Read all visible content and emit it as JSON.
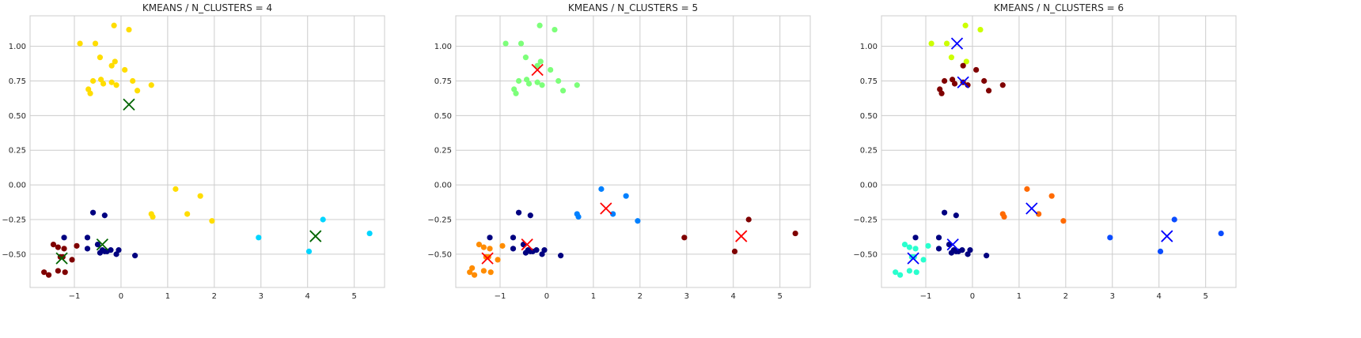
{
  "chart_data": [
    {
      "type": "scatter",
      "title": "KMEANS / N_CLUSTERS = 4",
      "xlim": [
        -1.95,
        5.65
      ],
      "ylim": [
        -0.74,
        1.22
      ],
      "grid": true,
      "xticks": [
        -1,
        0,
        1,
        2,
        3,
        4,
        5
      ],
      "yticks": [
        -0.5,
        -0.25,
        0.0,
        0.25,
        0.5,
        0.75,
        1.0
      ],
      "xtick_labels": [
        "−1",
        "0",
        "1",
        "2",
        "3",
        "4",
        "5"
      ],
      "ytick_labels": [
        "−0.50",
        "−0.25",
        "0.00",
        "0.25",
        "0.50",
        "0.75",
        "1.00"
      ],
      "clusters": [
        {
          "color": "#ffdd00",
          "points": [
            [
              -0.88,
              1.02
            ],
            [
              -0.55,
              1.02
            ],
            [
              -0.15,
              1.15
            ],
            [
              0.17,
              1.12
            ],
            [
              -0.45,
              0.92
            ],
            [
              -0.13,
              0.89
            ],
            [
              -0.2,
              0.86
            ],
            [
              0.08,
              0.83
            ],
            [
              -0.6,
              0.75
            ],
            [
              -0.43,
              0.76
            ],
            [
              -0.2,
              0.74
            ],
            [
              -0.38,
              0.73
            ],
            [
              -0.1,
              0.72
            ],
            [
              0.25,
              0.75
            ],
            [
              0.65,
              0.72
            ],
            [
              -0.7,
              0.69
            ],
            [
              -0.66,
              0.66
            ],
            [
              0.35,
              0.68
            ],
            [
              1.17,
              -0.03
            ],
            [
              1.7,
              -0.08
            ],
            [
              0.65,
              -0.21
            ],
            [
              0.68,
              -0.23
            ],
            [
              1.42,
              -0.21
            ],
            [
              1.95,
              -0.26
            ]
          ]
        },
        {
          "color": "#000080",
          "points": [
            [
              -0.6,
              -0.2
            ],
            [
              -0.35,
              -0.22
            ],
            [
              -1.22,
              -0.38
            ],
            [
              -0.72,
              -0.38
            ],
            [
              -0.5,
              -0.43
            ],
            [
              -0.72,
              -0.46
            ],
            [
              -0.4,
              -0.47
            ],
            [
              -0.45,
              -0.49
            ],
            [
              -0.35,
              -0.48
            ],
            [
              -0.22,
              -0.47
            ],
            [
              -0.1,
              -0.5
            ],
            [
              -0.05,
              -0.47
            ],
            [
              0.3,
              -0.51
            ],
            [
              -0.3,
              -0.48
            ]
          ]
        },
        {
          "color": "#7f0000",
          "points": [
            [
              -1.45,
              -0.43
            ],
            [
              -1.35,
              -0.45
            ],
            [
              -1.22,
              -0.46
            ],
            [
              -0.95,
              -0.44
            ],
            [
              -1.3,
              -0.52
            ],
            [
              -1.05,
              -0.54
            ],
            [
              -1.25,
              -0.52
            ],
            [
              -1.65,
              -0.63
            ],
            [
              -1.55,
              -0.65
            ],
            [
              -1.35,
              -0.62
            ],
            [
              -1.2,
              -0.63
            ]
          ]
        },
        {
          "color": "#00d5ff",
          "points": [
            [
              2.95,
              -0.38
            ],
            [
              4.33,
              -0.25
            ],
            [
              5.33,
              -0.35
            ],
            [
              4.03,
              -0.48
            ]
          ]
        }
      ],
      "centroids": {
        "color": "#006400",
        "points": [
          [
            0.17,
            0.58
          ],
          [
            -0.4,
            -0.43
          ],
          [
            -1.27,
            -0.53
          ],
          [
            4.17,
            -0.37
          ]
        ]
      }
    },
    {
      "type": "scatter",
      "title": "KMEANS / N_CLUSTERS = 5",
      "xlim": [
        -1.95,
        5.65
      ],
      "ylim": [
        -0.74,
        1.22
      ],
      "grid": true,
      "xticks": [
        -1,
        0,
        1,
        2,
        3,
        4,
        5
      ],
      "yticks": [
        -0.5,
        -0.25,
        0.0,
        0.25,
        0.5,
        0.75,
        1.0
      ],
      "xtick_labels": [
        "−1",
        "0",
        "1",
        "2",
        "3",
        "4",
        "5"
      ],
      "ytick_labels": [
        "−0.50",
        "−0.25",
        "0.00",
        "0.25",
        "0.50",
        "0.75",
        "1.00"
      ],
      "clusters": [
        {
          "color": "#7dff7a",
          "points": [
            [
              -0.88,
              1.02
            ],
            [
              -0.55,
              1.02
            ],
            [
              -0.15,
              1.15
            ],
            [
              0.17,
              1.12
            ],
            [
              -0.45,
              0.92
            ],
            [
              -0.13,
              0.89
            ],
            [
              -0.2,
              0.86
            ],
            [
              0.08,
              0.83
            ],
            [
              -0.6,
              0.75
            ],
            [
              -0.43,
              0.76
            ],
            [
              -0.2,
              0.74
            ],
            [
              -0.38,
              0.73
            ],
            [
              -0.1,
              0.72
            ],
            [
              0.25,
              0.75
            ],
            [
              0.65,
              0.72
            ],
            [
              -0.7,
              0.69
            ],
            [
              -0.66,
              0.66
            ],
            [
              0.35,
              0.68
            ]
          ]
        },
        {
          "color": "#000080",
          "points": [
            [
              -0.6,
              -0.2
            ],
            [
              -0.35,
              -0.22
            ],
            [
              -1.22,
              -0.38
            ],
            [
              -0.72,
              -0.38
            ],
            [
              -0.5,
              -0.43
            ],
            [
              -0.72,
              -0.46
            ],
            [
              -0.4,
              -0.47
            ],
            [
              -0.45,
              -0.49
            ],
            [
              -0.35,
              -0.48
            ],
            [
              -0.22,
              -0.47
            ],
            [
              -0.1,
              -0.5
            ],
            [
              -0.05,
              -0.47
            ],
            [
              0.3,
              -0.51
            ],
            [
              -0.3,
              -0.48
            ]
          ]
        },
        {
          "color": "#ff8c00",
          "points": [
            [
              -1.45,
              -0.43
            ],
            [
              -1.35,
              -0.45
            ],
            [
              -1.22,
              -0.46
            ],
            [
              -0.95,
              -0.44
            ],
            [
              -1.3,
              -0.52
            ],
            [
              -1.05,
              -0.54
            ],
            [
              -1.25,
              -0.52
            ],
            [
              -1.65,
              -0.63
            ],
            [
              -1.55,
              -0.65
            ],
            [
              -1.35,
              -0.62
            ],
            [
              -1.2,
              -0.63
            ],
            [
              -1.6,
              -0.6
            ]
          ]
        },
        {
          "color": "#0080ff",
          "points": [
            [
              1.17,
              -0.03
            ],
            [
              1.7,
              -0.08
            ],
            [
              0.65,
              -0.21
            ],
            [
              0.68,
              -0.23
            ],
            [
              1.42,
              -0.21
            ],
            [
              1.95,
              -0.26
            ]
          ]
        },
        {
          "color": "#7f0000",
          "points": [
            [
              2.95,
              -0.38
            ],
            [
              4.33,
              -0.25
            ],
            [
              5.33,
              -0.35
            ],
            [
              4.03,
              -0.48
            ]
          ]
        }
      ],
      "centroids": {
        "color": "#ff0000",
        "points": [
          [
            -0.2,
            0.83
          ],
          [
            -0.42,
            -0.43
          ],
          [
            -1.27,
            -0.53
          ],
          [
            1.27,
            -0.17
          ],
          [
            4.17,
            -0.37
          ]
        ]
      }
    },
    {
      "type": "scatter",
      "title": "KMEANS / N_CLUSTERS = 6",
      "xlim": [
        -1.95,
        5.65
      ],
      "ylim": [
        -0.74,
        1.22
      ],
      "grid": true,
      "xticks": [
        -1,
        0,
        1,
        2,
        3,
        4,
        5
      ],
      "yticks": [
        -0.5,
        -0.25,
        0.0,
        0.25,
        0.5,
        0.75,
        1.0
      ],
      "xtick_labels": [
        "−1",
        "0",
        "1",
        "2",
        "3",
        "4",
        "5"
      ],
      "ytick_labels": [
        "−0.50",
        "−0.25",
        "0.00",
        "0.25",
        "0.50",
        "0.75",
        "1.00"
      ],
      "clusters": [
        {
          "color": "#ccff00",
          "points": [
            [
              -0.88,
              1.02
            ],
            [
              -0.55,
              1.02
            ],
            [
              -0.15,
              1.15
            ],
            [
              0.17,
              1.12
            ],
            [
              -0.45,
              0.92
            ],
            [
              -0.13,
              0.89
            ]
          ]
        },
        {
          "color": "#7f0000",
          "points": [
            [
              -0.2,
              0.86
            ],
            [
              0.08,
              0.83
            ],
            [
              -0.6,
              0.75
            ],
            [
              -0.43,
              0.76
            ],
            [
              -0.2,
              0.74
            ],
            [
              -0.38,
              0.73
            ],
            [
              -0.1,
              0.72
            ],
            [
              0.25,
              0.75
            ],
            [
              0.65,
              0.72
            ],
            [
              -0.7,
              0.69
            ],
            [
              -0.66,
              0.66
            ],
            [
              0.35,
              0.68
            ]
          ]
        },
        {
          "color": "#000080",
          "points": [
            [
              -0.6,
              -0.2
            ],
            [
              -0.35,
              -0.22
            ],
            [
              -1.22,
              -0.38
            ],
            [
              -0.72,
              -0.38
            ],
            [
              -0.5,
              -0.43
            ],
            [
              -0.72,
              -0.46
            ],
            [
              -0.4,
              -0.47
            ],
            [
              -0.45,
              -0.49
            ],
            [
              -0.35,
              -0.48
            ],
            [
              -0.22,
              -0.47
            ],
            [
              -0.1,
              -0.5
            ],
            [
              -0.05,
              -0.47
            ],
            [
              0.3,
              -0.51
            ],
            [
              -0.3,
              -0.48
            ]
          ]
        },
        {
          "color": "#29ffce",
          "points": [
            [
              -1.45,
              -0.43
            ],
            [
              -1.35,
              -0.45
            ],
            [
              -1.22,
              -0.46
            ],
            [
              -0.95,
              -0.44
            ],
            [
              -1.3,
              -0.52
            ],
            [
              -1.05,
              -0.54
            ],
            [
              -1.25,
              -0.52
            ],
            [
              -1.65,
              -0.63
            ],
            [
              -1.55,
              -0.65
            ],
            [
              -1.35,
              -0.62
            ],
            [
              -1.2,
              -0.63
            ]
          ]
        },
        {
          "color": "#ff6a00",
          "points": [
            [
              1.17,
              -0.03
            ],
            [
              1.7,
              -0.08
            ],
            [
              0.65,
              -0.21
            ],
            [
              0.68,
              -0.23
            ],
            [
              1.42,
              -0.21
            ],
            [
              1.95,
              -0.26
            ]
          ]
        },
        {
          "color": "#0a4cff",
          "points": [
            [
              2.95,
              -0.38
            ],
            [
              4.33,
              -0.25
            ],
            [
              5.33,
              -0.35
            ],
            [
              4.03,
              -0.48
            ]
          ]
        }
      ],
      "centroids": {
        "color": "#0000ff",
        "points": [
          [
            -0.33,
            1.02
          ],
          [
            -0.2,
            0.74
          ],
          [
            -0.42,
            -0.43
          ],
          [
            -1.27,
            -0.53
          ],
          [
            1.27,
            -0.17
          ],
          [
            4.17,
            -0.37
          ]
        ]
      }
    }
  ]
}
